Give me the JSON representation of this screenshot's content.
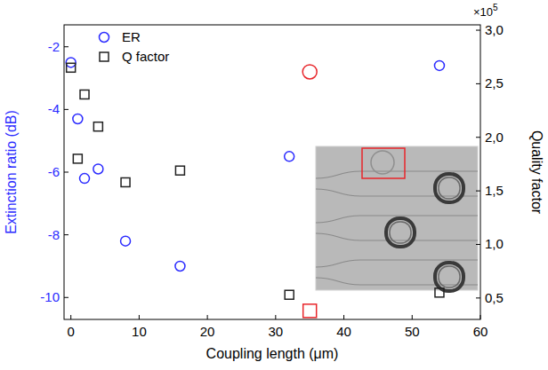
{
  "chart_data": {
    "type": "scatter",
    "x_label": "Coupling length (μm)",
    "y_label": "Extinction ratio (dB)",
    "y2_label": "Quality factor",
    "y2_scale_label": {
      "base": "×10",
      "exponent": "5"
    },
    "x": [
      0,
      1,
      2,
      4,
      8,
      16,
      32,
      35,
      54
    ],
    "xlim": [
      -1,
      60
    ],
    "xticks": [
      0,
      10,
      20,
      30,
      40,
      50,
      60
    ],
    "ylim": [
      -10.7,
      -1.3
    ],
    "yticks": [
      -10,
      -8,
      -6,
      -4,
      -2
    ],
    "y2lim": [
      0.3,
      3.05
    ],
    "y2ticks": [
      {
        "value": 0.5,
        "label": "0,5"
      },
      {
        "value": 1.0,
        "label": "1,0"
      },
      {
        "value": 1.5,
        "label": "1,5"
      },
      {
        "value": 2.0,
        "label": "2,0"
      },
      {
        "value": 2.5,
        "label": "2,5"
      },
      {
        "value": 3.0,
        "label": "3,0"
      }
    ],
    "legend": "top-left",
    "series": [
      {
        "name": "ER",
        "color": "#2b2bff",
        "marker": "circle",
        "colors": [
          "#2b2bff",
          "#2b2bff",
          "#2b2bff",
          "#2b2bff",
          "#2b2bff",
          "#2b2bff",
          "#2b2bff",
          "#e8262b",
          "#2b2bff"
        ],
        "values": [
          -2.5,
          -4.3,
          -6.2,
          -5.9,
          -8.2,
          -9.0,
          -5.5,
          -2.8,
          -2.6
        ]
      },
      {
        "name": "Q factor",
        "color": "#222222",
        "marker": "square",
        "axis": "y2",
        "colors": [
          "#222222",
          "#222222",
          "#222222",
          "#222222",
          "#222222",
          "#222222",
          "#222222",
          "#e8262b",
          "#222222"
        ],
        "values": [
          2.65,
          1.8,
          2.4,
          2.1,
          1.58,
          1.69,
          0.53,
          0.38,
          0.55
        ]
      }
    ]
  }
}
